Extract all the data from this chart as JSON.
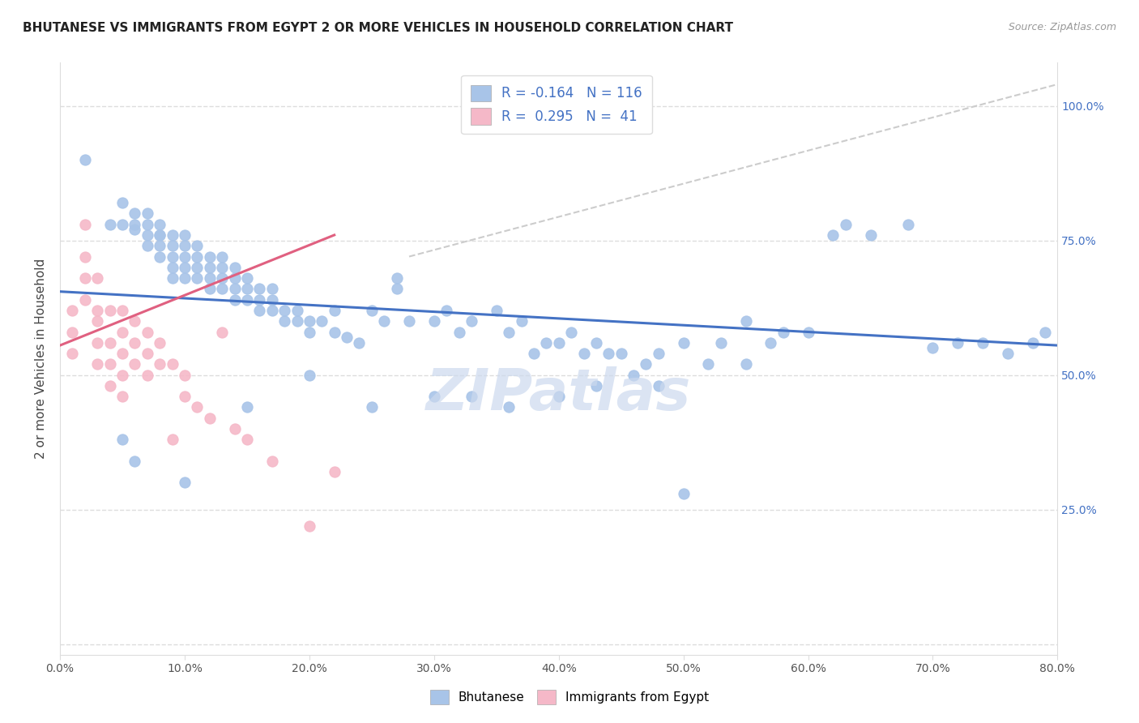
{
  "title": "BHUTANESE VS IMMIGRANTS FROM EGYPT 2 OR MORE VEHICLES IN HOUSEHOLD CORRELATION CHART",
  "source": "Source: ZipAtlas.com",
  "ylabel": "2 or more Vehicles in Household",
  "xlim": [
    0.0,
    0.8
  ],
  "ylim": [
    -0.02,
    1.08
  ],
  "y_tick_vals": [
    0.0,
    0.25,
    0.5,
    0.75,
    1.0
  ],
  "x_tick_vals": [
    0.0,
    0.1,
    0.2,
    0.3,
    0.4,
    0.5,
    0.6,
    0.7,
    0.8
  ],
  "x_tick_labels": [
    "0.0%",
    "10.0%",
    "20.0%",
    "30.0%",
    "40.0%",
    "50.0%",
    "60.0%",
    "70.0%",
    "80.0%"
  ],
  "y_tick_labels": [
    "",
    "25.0%",
    "50.0%",
    "75.0%",
    "100.0%"
  ],
  "blue_R": -0.164,
  "blue_N": 116,
  "pink_R": 0.295,
  "pink_N": 41,
  "blue_scatter_color": "#a8c4e8",
  "pink_scatter_color": "#f5b8c8",
  "blue_line_color": "#4472c4",
  "pink_line_color": "#e06080",
  "dashed_line_color": "#cccccc",
  "grid_color": "#dddddd",
  "title_color": "#222222",
  "source_color": "#999999",
  "axis_tick_color": "#4472c4",
  "watermark_color": "#ccd9ee",
  "watermark_text": "ZIPatlas",
  "blue_line_x": [
    0.0,
    0.8
  ],
  "blue_line_y": [
    0.655,
    0.555
  ],
  "pink_line_x": [
    0.0,
    0.22
  ],
  "pink_line_y": [
    0.555,
    0.76
  ],
  "dash_line_x": [
    0.28,
    0.8
  ],
  "dash_line_y": [
    0.72,
    1.04
  ],
  "blue_x": [
    0.02,
    0.04,
    0.05,
    0.05,
    0.06,
    0.06,
    0.06,
    0.07,
    0.07,
    0.07,
    0.07,
    0.08,
    0.08,
    0.08,
    0.08,
    0.08,
    0.09,
    0.09,
    0.09,
    0.09,
    0.09,
    0.1,
    0.1,
    0.1,
    0.1,
    0.1,
    0.11,
    0.11,
    0.11,
    0.11,
    0.12,
    0.12,
    0.12,
    0.12,
    0.13,
    0.13,
    0.13,
    0.13,
    0.14,
    0.14,
    0.14,
    0.14,
    0.15,
    0.15,
    0.15,
    0.16,
    0.16,
    0.16,
    0.17,
    0.17,
    0.17,
    0.18,
    0.18,
    0.19,
    0.19,
    0.2,
    0.2,
    0.21,
    0.22,
    0.22,
    0.23,
    0.24,
    0.25,
    0.26,
    0.27,
    0.27,
    0.28,
    0.3,
    0.31,
    0.32,
    0.33,
    0.35,
    0.36,
    0.37,
    0.38,
    0.39,
    0.4,
    0.41,
    0.42,
    0.43,
    0.44,
    0.45,
    0.46,
    0.47,
    0.48,
    0.5,
    0.52,
    0.53,
    0.55,
    0.57,
    0.58,
    0.6,
    0.62,
    0.63,
    0.65,
    0.68,
    0.7,
    0.72,
    0.74,
    0.76,
    0.78,
    0.79,
    0.05,
    0.06,
    0.1,
    0.15,
    0.2,
    0.25,
    0.3,
    0.33,
    0.36,
    0.4,
    0.43,
    0.48,
    0.5,
    0.55
  ],
  "blue_y": [
    0.9,
    0.78,
    0.78,
    0.82,
    0.77,
    0.78,
    0.8,
    0.78,
    0.76,
    0.74,
    0.8,
    0.76,
    0.78,
    0.74,
    0.72,
    0.76,
    0.72,
    0.74,
    0.76,
    0.68,
    0.7,
    0.68,
    0.7,
    0.72,
    0.74,
    0.76,
    0.68,
    0.7,
    0.72,
    0.74,
    0.66,
    0.68,
    0.7,
    0.72,
    0.66,
    0.68,
    0.7,
    0.72,
    0.64,
    0.66,
    0.68,
    0.7,
    0.64,
    0.66,
    0.68,
    0.62,
    0.64,
    0.66,
    0.62,
    0.64,
    0.66,
    0.6,
    0.62,
    0.6,
    0.62,
    0.58,
    0.6,
    0.6,
    0.58,
    0.62,
    0.57,
    0.56,
    0.62,
    0.6,
    0.66,
    0.68,
    0.6,
    0.6,
    0.62,
    0.58,
    0.6,
    0.62,
    0.58,
    0.6,
    0.54,
    0.56,
    0.56,
    0.58,
    0.54,
    0.56,
    0.54,
    0.54,
    0.5,
    0.52,
    0.54,
    0.56,
    0.52,
    0.56,
    0.6,
    0.56,
    0.58,
    0.58,
    0.76,
    0.78,
    0.76,
    0.78,
    0.55,
    0.56,
    0.56,
    0.54,
    0.56,
    0.58,
    0.38,
    0.34,
    0.3,
    0.44,
    0.5,
    0.44,
    0.46,
    0.46,
    0.44,
    0.46,
    0.48,
    0.48,
    0.28,
    0.52
  ],
  "pink_x": [
    0.01,
    0.01,
    0.01,
    0.02,
    0.02,
    0.02,
    0.02,
    0.03,
    0.03,
    0.03,
    0.03,
    0.03,
    0.04,
    0.04,
    0.04,
    0.04,
    0.05,
    0.05,
    0.05,
    0.05,
    0.05,
    0.06,
    0.06,
    0.06,
    0.07,
    0.07,
    0.07,
    0.08,
    0.08,
    0.09,
    0.09,
    0.1,
    0.1,
    0.11,
    0.12,
    0.13,
    0.14,
    0.15,
    0.17,
    0.2,
    0.22
  ],
  "pink_y": [
    0.62,
    0.58,
    0.54,
    0.78,
    0.72,
    0.68,
    0.64,
    0.68,
    0.62,
    0.6,
    0.56,
    0.52,
    0.62,
    0.56,
    0.52,
    0.48,
    0.62,
    0.58,
    0.54,
    0.5,
    0.46,
    0.6,
    0.56,
    0.52,
    0.58,
    0.54,
    0.5,
    0.56,
    0.52,
    0.52,
    0.38,
    0.5,
    0.46,
    0.44,
    0.42,
    0.58,
    0.4,
    0.38,
    0.34,
    0.22,
    0.32
  ]
}
